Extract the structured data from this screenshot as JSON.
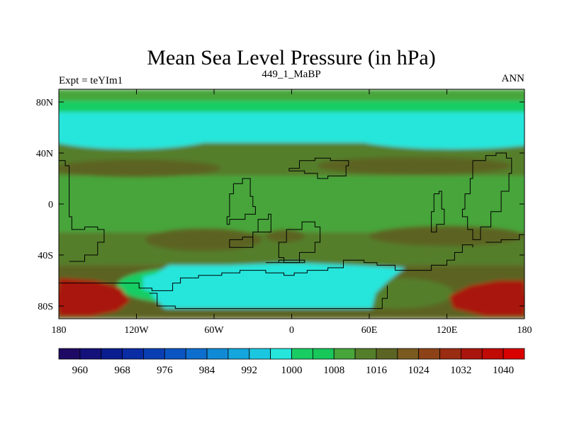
{
  "chart_data": {
    "type": "contour-map",
    "title": "Mean Sea Level Pressure (in hPa)",
    "left_label": "Expt = teYIm1",
    "center_label": "449_1_MaBP",
    "right_label": "ANN",
    "units": "hPa",
    "x_range": [
      -180,
      180
    ],
    "y_range": [
      -90,
      90
    ],
    "x_ticks": [
      {
        "value": -180,
        "label": "180"
      },
      {
        "value": -120,
        "label": "120W"
      },
      {
        "value": -60,
        "label": "60W"
      },
      {
        "value": 0,
        "label": "0"
      },
      {
        "value": 60,
        "label": "60E"
      },
      {
        "value": 120,
        "label": "120E"
      },
      {
        "value": 180,
        "label": "180"
      }
    ],
    "y_ticks": [
      {
        "value": 80,
        "label": "80N"
      },
      {
        "value": 40,
        "label": "40N"
      },
      {
        "value": 0,
        "label": "0"
      },
      {
        "value": -40,
        "label": "40S"
      },
      {
        "value": -80,
        "label": "80S"
      }
    ],
    "colorbar": {
      "levels": [
        960,
        964,
        968,
        972,
        976,
        980,
        984,
        988,
        992,
        996,
        1000,
        1004,
        1008,
        1012,
        1016,
        1020,
        1024,
        1028,
        1032,
        1036,
        1040
      ],
      "labels": [
        "960",
        "968",
        "976",
        "984",
        "992",
        "1000",
        "1008",
        "1016",
        "1024",
        "1032",
        "1040"
      ],
      "colors": [
        "#1e0a64",
        "#14117a",
        "#0a1d8f",
        "#0a2ca4",
        "#0a3fb4",
        "#0b55c2",
        "#0e6ecd",
        "#118ad6",
        "#14a6dc",
        "#1bc7e0",
        "#26e6dc",
        "#19cd63",
        "#17c75a",
        "#47a53a",
        "#557e2a",
        "#5c6424",
        "#7a5a1e",
        "#8d4317",
        "#9a2c12",
        "#a9150c",
        "#c00a05",
        "#d90000"
      ]
    },
    "bands": [
      {
        "lat": [
          81,
          90
        ],
        "base_hpa": 1010
      },
      {
        "lat": [
          72,
          81
        ],
        "base_hpa": 1000
      },
      {
        "lat": [
          48,
          72
        ],
        "base_hpa": 998
      },
      {
        "lat": [
          22,
          48
        ],
        "base_hpa": 1014
      },
      {
        "lat": [
          -22,
          22
        ],
        "base_hpa": 1010
      },
      {
        "lat": [
          -48,
          -22
        ],
        "base_hpa": 1012
      },
      {
        "lat": [
          -90,
          -48
        ],
        "base_hpa": 1018
      }
    ],
    "cells": [
      {
        "lon": -145,
        "lat": 56,
        "rx": 42,
        "ry": 4,
        "hpa": 994
      },
      {
        "lon": 155,
        "lat": 56,
        "rx": 40,
        "ry": 4,
        "hpa": 994
      },
      {
        "lon": -125,
        "lat": 55,
        "rx": 70,
        "ry": 12,
        "hpa": 996
      },
      {
        "lon": 125,
        "lat": 55,
        "rx": 85,
        "ry": 12,
        "hpa": 996
      },
      {
        "lon": -120,
        "lat": 28,
        "rx": 65,
        "ry": 7,
        "hpa": 1018
      },
      {
        "lon": 95,
        "lat": 30,
        "rx": 75,
        "ry": 7,
        "hpa": 1018
      },
      {
        "lon": -68,
        "lat": -28,
        "rx": 45,
        "ry": 9,
        "hpa": 1018
      },
      {
        "lon": 120,
        "lat": -25,
        "rx": 60,
        "ry": 8,
        "hpa": 1017
      },
      {
        "lon": -5,
        "lat": -25,
        "rx": 15,
        "ry": 5,
        "hpa": 1016
      },
      {
        "lon": -80,
        "lat": -64,
        "rx": 55,
        "ry": 14,
        "hpa": 1001
      },
      {
        "lon": 80,
        "lat": -70,
        "rx": 45,
        "ry": 12,
        "hpa": 1014
      },
      {
        "lon": -170,
        "lat": -74,
        "rx": 30,
        "ry": 11,
        "hpa": 1026
      },
      {
        "lon": 165,
        "lat": -74,
        "rx": 40,
        "ry": 11,
        "hpa": 1026
      },
      {
        "lon": -170,
        "lat": -76,
        "rx": 18,
        "ry": 8,
        "hpa": 1034
      },
      {
        "lon": 165,
        "lat": -76,
        "rx": 20,
        "ry": 8,
        "hpa": 1032
      }
    ],
    "regions": [
      {
        "name": "antarctic-high",
        "hpa": 1034,
        "points": [
          [
            -180,
            -88
          ],
          [
            -155,
            -88
          ],
          [
            -135,
            -84
          ],
          [
            -125,
            -76
          ],
          [
            -132,
            -66
          ],
          [
            -152,
            -60
          ],
          [
            -180,
            -58
          ]
        ]
      },
      {
        "name": "antarctic-high-east",
        "hpa": 1032,
        "points": [
          [
            180,
            -88
          ],
          [
            150,
            -88
          ],
          [
            125,
            -82
          ],
          [
            122,
            -72
          ],
          [
            138,
            -64
          ],
          [
            160,
            -60
          ],
          [
            180,
            -60
          ]
        ]
      },
      {
        "name": "southern-trough",
        "hpa": 999,
        "points": [
          [
            -95,
            -48
          ],
          [
            -50,
            -48
          ],
          [
            0,
            -46
          ],
          [
            50,
            -48
          ],
          [
            88,
            -50
          ],
          [
            75,
            -60
          ],
          [
            65,
            -70
          ],
          [
            62,
            -82
          ],
          [
            -98,
            -82
          ],
          [
            -108,
            -72
          ],
          [
            -110,
            -58
          ]
        ]
      },
      {
        "name": "southern-low",
        "hpa": 996,
        "points": [
          [
            -115,
            -57
          ],
          [
            -92,
            -52
          ],
          [
            -60,
            -55
          ],
          [
            -44,
            -62
          ],
          [
            -60,
            -70
          ],
          [
            -90,
            -72
          ],
          [
            -115,
            -67
          ]
        ]
      }
    ],
    "coastlines": [
      [
        [
          -180,
          34
        ],
        [
          -175,
          30
        ],
        [
          -172,
          28
        ],
        [
          -172,
          -10
        ],
        [
          -170,
          -20
        ],
        [
          -160,
          -18
        ],
        [
          -150,
          -20
        ],
        [
          -145,
          -30
        ],
        [
          -150,
          -40
        ],
        [
          -160,
          -45
        ],
        [
          -172,
          -45
        ]
      ],
      [
        [
          -45,
          16
        ],
        [
          -38,
          20
        ],
        [
          -32,
          18
        ],
        [
          -32,
          6
        ],
        [
          -30,
          -2
        ],
        [
          -28,
          -8
        ],
        [
          -36,
          -12
        ],
        [
          -48,
          -16
        ],
        [
          -50,
          -10
        ],
        [
          -48,
          -2
        ],
        [
          -48,
          8
        ],
        [
          -45,
          16
        ]
      ],
      [
        [
          -38,
          -26
        ],
        [
          -30,
          -22
        ],
        [
          -26,
          -12
        ],
        [
          -18,
          -8
        ],
        [
          -16,
          -22
        ],
        [
          -30,
          -34
        ],
        [
          -42,
          -34
        ],
        [
          -48,
          -28
        ],
        [
          -38,
          -26
        ]
      ],
      [
        [
          -4,
          -20
        ],
        [
          8,
          -14
        ],
        [
          18,
          -18
        ],
        [
          22,
          -30
        ],
        [
          18,
          -38
        ],
        [
          6,
          -46
        ],
        [
          -6,
          -42
        ],
        [
          -10,
          -30
        ],
        [
          -4,
          -20
        ]
      ],
      [
        [
          -10,
          -44
        ],
        [
          10,
          -46
        ],
        [
          -20,
          -46
        ],
        [
          -10,
          -44
        ]
      ],
      [
        [
          -2,
          28
        ],
        [
          6,
          34
        ],
        [
          18,
          36
        ],
        [
          30,
          34
        ],
        [
          44,
          30
        ],
        [
          42,
          22
        ],
        [
          28,
          20
        ],
        [
          20,
          24
        ],
        [
          10,
          26
        ],
        [
          -2,
          28
        ]
      ],
      [
        [
          140,
          34
        ],
        [
          150,
          38
        ],
        [
          158,
          40
        ],
        [
          166,
          36
        ],
        [
          170,
          24
        ],
        [
          168,
          10
        ],
        [
          162,
          -6
        ],
        [
          154,
          -18
        ],
        [
          146,
          -28
        ],
        [
          140,
          -20
        ],
        [
          136,
          -10
        ],
        [
          132,
          -4
        ],
        [
          134,
          8
        ],
        [
          138,
          20
        ],
        [
          140,
          34
        ]
      ],
      [
        [
          110,
          8
        ],
        [
          114,
          10
        ],
        [
          116,
          -4
        ],
        [
          118,
          -16
        ],
        [
          112,
          -22
        ],
        [
          108,
          -18
        ],
        [
          108,
          -6
        ],
        [
          110,
          8
        ]
      ],
      [
        [
          150,
          -30
        ],
        [
          162,
          -28
        ],
        [
          176,
          -24
        ],
        [
          180,
          -22
        ]
      ],
      [
        [
          -180,
          -62
        ],
        [
          -118,
          -66
        ],
        [
          -108,
          -68
        ],
        [
          -96,
          -68
        ],
        [
          -92,
          -62
        ],
        [
          -86,
          -58
        ],
        [
          -78,
          -58
        ],
        [
          -72,
          -56
        ],
        [
          -54,
          -54
        ],
        [
          -40,
          -52
        ],
        [
          -20,
          -54
        ],
        [
          -6,
          -56
        ],
        [
          2,
          -54
        ],
        [
          12,
          -52
        ],
        [
          28,
          -50
        ],
        [
          40,
          -44
        ],
        [
          56,
          -46
        ],
        [
          66,
          -48
        ],
        [
          80,
          -52
        ],
        [
          96,
          -52
        ],
        [
          108,
          -48
        ],
        [
          120,
          -44
        ],
        [
          126,
          -38
        ],
        [
          132,
          -32
        ],
        [
          140,
          -34
        ]
      ],
      [
        [
          -110,
          -70
        ],
        [
          -104,
          -80
        ],
        [
          -90,
          -82
        ],
        [
          -40,
          -82
        ],
        [
          0,
          -82
        ],
        [
          40,
          -82
        ],
        [
          62,
          -82
        ],
        [
          70,
          -74
        ],
        [
          74,
          -64
        ]
      ]
    ]
  }
}
